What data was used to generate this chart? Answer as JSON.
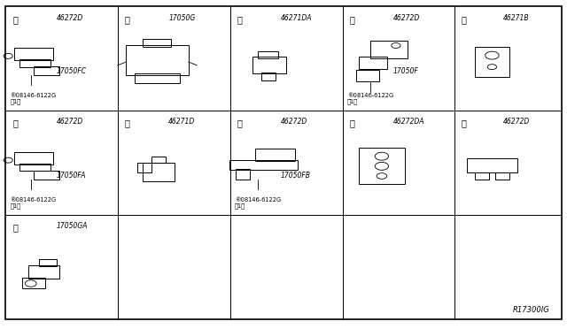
{
  "bg_color": "#ffffff",
  "border_color": "#000000",
  "line_color": "#000000",
  "text_color": "#000000",
  "figure_width": 6.4,
  "figure_height": 3.72,
  "dpi": 100,
  "grid_lines": {
    "horizontals": [
      0.333,
      0.667
    ],
    "verticals": [
      0.2,
      0.4,
      0.6,
      0.8
    ]
  },
  "diagram_ref": "R17300IG",
  "cells": [
    {
      "id": "a",
      "label": "æ",
      "col": 0,
      "row": 0,
      "parts": [
        "46272D",
        "17050FC"
      ],
      "sub_parts": [
        "®08146-6122G\n（1）"
      ]
    },
    {
      "id": "b",
      "label": "ç",
      "col": 1,
      "row": 0,
      "parts": [
        "17050G"
      ],
      "sub_parts": []
    },
    {
      "id": "c",
      "label": "è",
      "col": 2,
      "row": 0,
      "parts": [
        "46271DA"
      ],
      "sub_parts": []
    },
    {
      "id": "d",
      "label": "é",
      "col": 3,
      "row": 0,
      "parts": [
        "46272D",
        "17050F"
      ],
      "sub_parts": [
        "®08146-6122G\n（1）"
      ]
    },
    {
      "id": "e",
      "label": "ê",
      "col": 4,
      "row": 0,
      "parts": [
        "46271B"
      ],
      "sub_parts": []
    },
    {
      "id": "f",
      "label": "ë",
      "col": 0,
      "row": 1,
      "parts": [
        "46272D",
        "17050FA"
      ],
      "sub_parts": [
        "®08146-6122G\n（1）"
      ]
    },
    {
      "id": "g",
      "label": "ì",
      "col": 1,
      "row": 1,
      "parts": [
        "46271D"
      ],
      "sub_parts": []
    },
    {
      "id": "h",
      "label": "í",
      "col": 2,
      "row": 1,
      "parts": [
        "46272D",
        "17050FB"
      ],
      "sub_parts": [
        "®08146-6122G\n（1）"
      ]
    },
    {
      "id": "i",
      "label": "î",
      "col": 3,
      "row": 1,
      "parts": [
        "46272DA"
      ],
      "sub_parts": []
    },
    {
      "id": "j",
      "label": "ï",
      "col": 4,
      "row": 1,
      "parts": [
        "46272D"
      ],
      "sub_parts": []
    },
    {
      "id": "k",
      "label": "ð",
      "col": 0,
      "row": 2,
      "parts": [
        "17050GA"
      ],
      "sub_parts": []
    }
  ],
  "cell_labels": {
    "a": "a",
    "b": "b",
    "c": "c",
    "d": "d",
    "e": "e",
    "f": "f",
    "g": "g",
    "h": "h",
    "i": "i",
    "j": "j",
    "k": "k"
  }
}
